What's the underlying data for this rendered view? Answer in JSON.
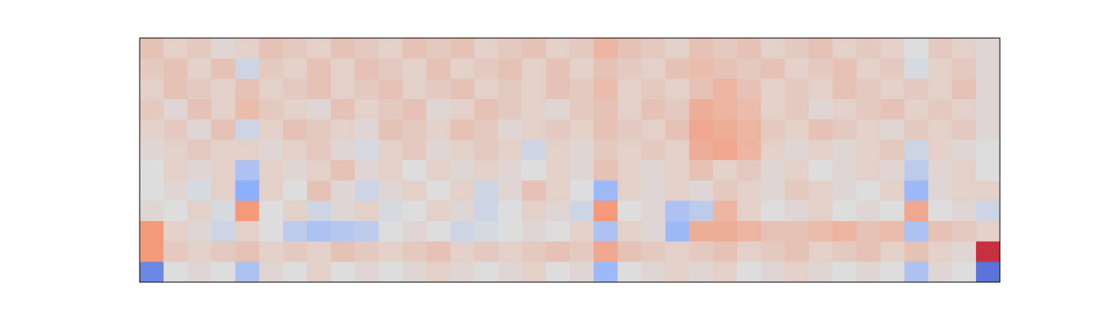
{
  "chart_data": {
    "type": "heatmap",
    "colormap": "coolwarm",
    "clim": [
      -1,
      1
    ],
    "values": [
      [
        0.2,
        0.1,
        0.15,
        0.05,
        0.1,
        0.2,
        0.15,
        0.1,
        0.2,
        0.15,
        0.1,
        0.2,
        0.15,
        0.2,
        0.1,
        0.15,
        0.2,
        0.1,
        0.15,
        0.3,
        0.2,
        0.15,
        0.1,
        0.2,
        0.15,
        0.2,
        0.1,
        0.15,
        0.2,
        0.1,
        0.15,
        0.1,
        0,
        0.15,
        0.1,
        0.05
      ],
      [
        0.15,
        0.2,
        0.1,
        0.2,
        -0.1,
        0.15,
        0.1,
        0.2,
        0.1,
        0.2,
        0.15,
        0.1,
        0.2,
        0.1,
        0.15,
        0.2,
        0.1,
        0.2,
        0.1,
        0.2,
        0.15,
        0.1,
        0.2,
        0.25,
        0.2,
        0.15,
        0.2,
        0.1,
        0.15,
        0.2,
        0.1,
        0.15,
        -0.05,
        0.1,
        0.15,
        0.05
      ],
      [
        0.1,
        0.2,
        0.15,
        0.1,
        0.2,
        0.1,
        0.15,
        0.2,
        0.1,
        0.15,
        0.2,
        0.1,
        0.15,
        0.2,
        0.1,
        0.15,
        0.1,
        0.2,
        0.15,
        0.25,
        0.1,
        0.15,
        0.1,
        0.2,
        0.3,
        0.2,
        0.1,
        0.15,
        0.1,
        0.2,
        0.15,
        0.1,
        0.15,
        0.1,
        0.2,
        0.05
      ],
      [
        0.15,
        0.05,
        0.2,
        0.1,
        0.25,
        0.15,
        0.1,
        0.05,
        0.2,
        0.1,
        0.15,
        0.2,
        0.05,
        0.1,
        0.2,
        0.15,
        0.1,
        0.05,
        0.15,
        0.2,
        0.1,
        0.2,
        0.15,
        0.35,
        0.3,
        0.25,
        0.1,
        0.15,
        0.05,
        0.1,
        0.15,
        0.2,
        0.1,
        0.15,
        0.1,
        0.05
      ],
      [
        0.1,
        0.15,
        0.05,
        0.2,
        -0.1,
        0.1,
        0.2,
        0.15,
        0.1,
        0.05,
        0.2,
        0.15,
        0.1,
        0.2,
        0.15,
        0.05,
        0.1,
        0.15,
        0.1,
        0.2,
        0.15,
        0.1,
        0.2,
        0.4,
        0.35,
        0.3,
        0.15,
        0.1,
        0.2,
        0.15,
        0.1,
        0.05,
        0.15,
        0.1,
        0.15,
        0.05
      ],
      [
        0.05,
        0.1,
        0.15,
        0.1,
        0.1,
        0.05,
        0.1,
        0.15,
        0.05,
        -0.05,
        0.1,
        0.15,
        0.05,
        0.1,
        0.15,
        0.1,
        -0.1,
        0.1,
        0.05,
        0.15,
        0.1,
        0.15,
        0.1,
        0.35,
        0.4,
        0.3,
        0.1,
        0.05,
        0.1,
        0.05,
        0.1,
        0.15,
        -0.1,
        0.1,
        0.05,
        0
      ],
      [
        0,
        0.1,
        0.05,
        0.1,
        -0.3,
        0.1,
        0.05,
        0.1,
        0.2,
        0.05,
        0.1,
        0,
        0.1,
        0.05,
        0.1,
        0.05,
        0,
        0.1,
        0.05,
        0.2,
        0.1,
        0.05,
        0.1,
        0.2,
        0.1,
        0.15,
        0.05,
        0.1,
        0,
        0.05,
        0.1,
        0.05,
        -0.2,
        0.05,
        0.1,
        0
      ],
      [
        0,
        0.05,
        -0.05,
        0.1,
        -0.5,
        0.1,
        0,
        0.2,
        0.05,
        -0.1,
        0.05,
        0.1,
        0,
        0.1,
        -0.1,
        0.05,
        0.2,
        0.1,
        0,
        -0.4,
        0.1,
        0.05,
        0.1,
        0.05,
        0.15,
        0.1,
        0.05,
        0.15,
        0.1,
        0.05,
        0,
        0.1,
        -0.4,
        0.05,
        0.1,
        0.1
      ],
      [
        0.05,
        0,
        0.1,
        -0.05,
        0.5,
        0,
        0.1,
        -0.1,
        0.05,
        0.1,
        -0.05,
        0,
        0.1,
        0.05,
        -0.1,
        0,
        0.1,
        0.05,
        -0.1,
        0.5,
        0,
        0.05,
        -0.3,
        -0.2,
        0.3,
        0.1,
        0,
        0.05,
        0.1,
        0,
        0.05,
        0,
        0.4,
        0,
        0.05,
        -0.1
      ],
      [
        0.5,
        0.1,
        0.05,
        -0.1,
        0.1,
        0,
        -0.2,
        -0.3,
        -0.25,
        -0.2,
        0,
        0.05,
        0,
        -0.1,
        -0.05,
        0,
        0.05,
        0,
        0.1,
        -0.3,
        0.1,
        0.05,
        -0.4,
        0.35,
        0.35,
        0.3,
        0.2,
        0.2,
        0.25,
        0.3,
        0.2,
        0.25,
        -0.3,
        0.2,
        0.15,
        0.1
      ],
      [
        0.5,
        0.15,
        0.1,
        0.15,
        0.2,
        0.1,
        0.15,
        0.1,
        0.2,
        0.15,
        0.1,
        0.15,
        0.2,
        0.1,
        0.15,
        0.1,
        0.15,
        0.2,
        0.15,
        0.4,
        0.2,
        0.15,
        0.1,
        0.15,
        0.2,
        0.1,
        0.15,
        0.2,
        0.1,
        0.15,
        0.2,
        0.1,
        0.2,
        0.1,
        0.05,
        0.85
      ],
      [
        -0.7,
        0,
        0.05,
        0,
        -0.3,
        0.05,
        0,
        0.1,
        0,
        0.05,
        0,
        0.05,
        0.1,
        0.05,
        0,
        0.05,
        0.1,
        0,
        0.05,
        -0.4,
        0,
        0.05,
        0.1,
        0.05,
        0.1,
        0,
        0.05,
        0.1,
        0.05,
        0,
        0.05,
        0,
        -0.3,
        0.05,
        0,
        -0.8
      ]
    ]
  }
}
